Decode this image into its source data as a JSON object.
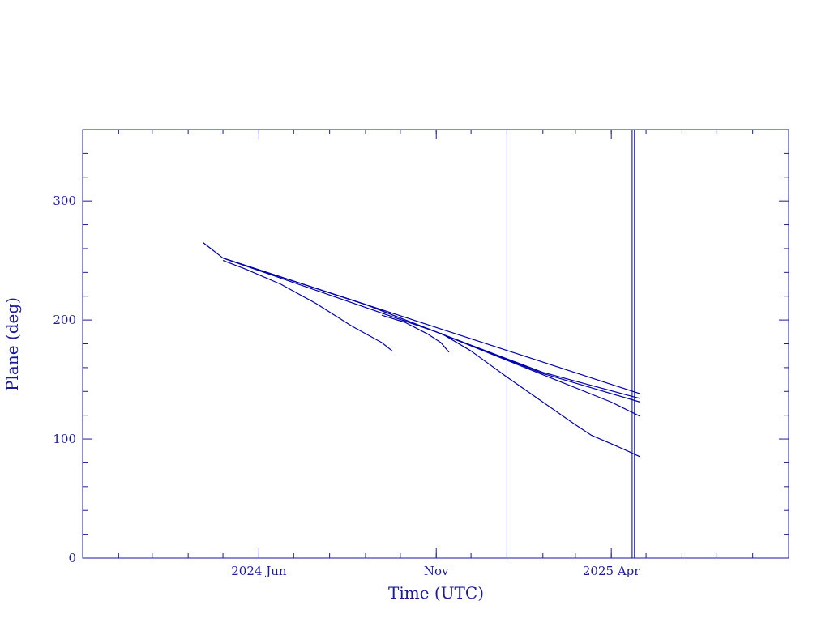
{
  "chart_data": {
    "type": "line",
    "title": "",
    "xlabel": "Time (UTC)",
    "ylabel": "Plane (deg)",
    "xlim": [
      "2024-01-01",
      "2025-09-01"
    ],
    "ylim": [
      0,
      360
    ],
    "x_ticks": [
      {
        "date": "2024-06-01",
        "label": "2024 Jun"
      },
      {
        "date": "2024-11-01",
        "label": "Nov"
      },
      {
        "date": "2025-04-01",
        "label": "2025 Apr"
      }
    ],
    "y_ticks": [
      0,
      100,
      200,
      300
    ],
    "grid": false,
    "line_color": "#0000aa",
    "axis_color": "#1a1a9a",
    "series": [
      {
        "points": [
          [
            "2024-04-14",
            265
          ],
          [
            "2024-05-01",
            252
          ],
          [
            "2025-04-26",
            138
          ]
        ]
      },
      {
        "points": [
          [
            "2024-05-01",
            252
          ],
          [
            "2024-09-01",
            213
          ],
          [
            "2024-11-01",
            190
          ],
          [
            "2025-02-01",
            156
          ],
          [
            "2025-04-26",
            134
          ]
        ]
      },
      {
        "points": [
          [
            "2024-05-01",
            252
          ],
          [
            "2024-09-01",
            213
          ],
          [
            "2024-11-01",
            190
          ],
          [
            "2025-02-01",
            155
          ],
          [
            "2025-04-26",
            131
          ]
        ]
      },
      {
        "points": [
          [
            "2024-05-01",
            252
          ],
          [
            "2024-11-01",
            190
          ],
          [
            "2025-02-01",
            154
          ],
          [
            "2025-04-01",
            131
          ],
          [
            "2025-04-26",
            119
          ]
        ]
      },
      {
        "points": [
          [
            "2024-05-01",
            250
          ],
          [
            "2024-05-20",
            243
          ],
          [
            "2024-06-20",
            230
          ],
          [
            "2024-07-20",
            214
          ],
          [
            "2024-08-20",
            195
          ],
          [
            "2024-09-15",
            181
          ],
          [
            "2024-09-24",
            174
          ]
        ]
      },
      {
        "points": [
          [
            "2024-09-15",
            204
          ],
          [
            "2024-10-05",
            198
          ],
          [
            "2024-10-25",
            188
          ],
          [
            "2024-11-05",
            181
          ],
          [
            "2024-11-12",
            173
          ]
        ]
      },
      {
        "points": [
          [
            "2024-11-05",
            189
          ],
          [
            "2024-12-01",
            174
          ],
          [
            "2025-01-01",
            152
          ],
          [
            "2025-02-01",
            131
          ],
          [
            "2025-03-01",
            112
          ],
          [
            "2025-03-15",
            103
          ],
          [
            "2025-04-01",
            96
          ],
          [
            "2025-04-15",
            90
          ],
          [
            "2025-04-26",
            85
          ]
        ]
      }
    ],
    "vertical_lines": [
      "2025-01-01",
      "2025-04-19",
      "2025-04-21"
    ]
  }
}
